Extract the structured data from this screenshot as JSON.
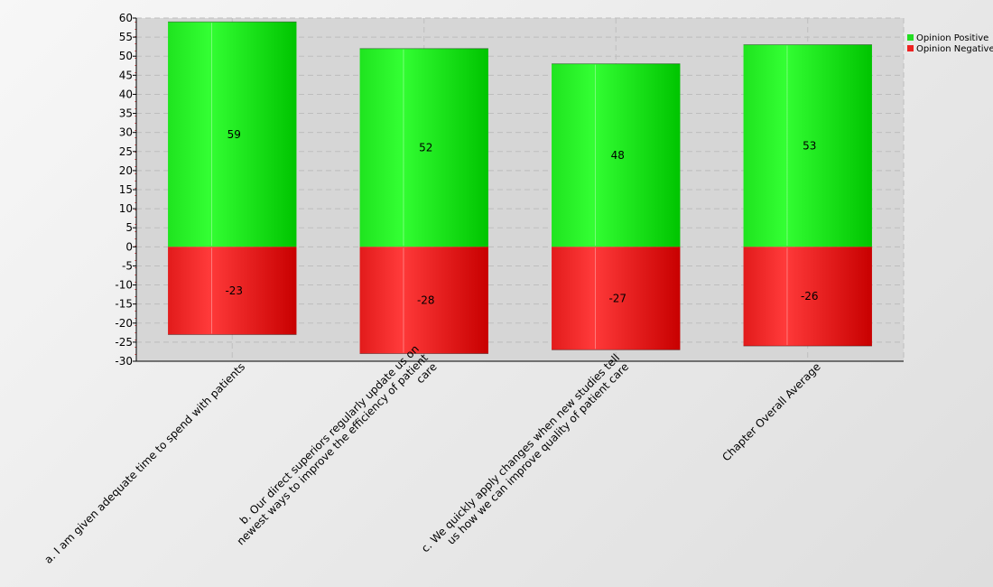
{
  "chart_data": {
    "type": "bar",
    "stacked": true,
    "categories": [
      [
        "a. I am given adequate time to spend with patients"
      ],
      [
        "b. Our direct superiors regularly update us on",
        "newest ways to improve the efficiency of patient",
        "care"
      ],
      [
        "c. We quickly apply changes when new studies tell",
        "us how we can improve quality of patient care"
      ],
      [
        "Chapter Overall Average"
      ]
    ],
    "series": [
      {
        "name": "Opinion Positive",
        "values": [
          59,
          52,
          48,
          53
        ],
        "color": "#22dd22"
      },
      {
        "name": "Opinion Negative",
        "values": [
          -23,
          -28,
          -27,
          -26
        ],
        "color": "#ee2222"
      }
    ],
    "ylim": [
      -30,
      60
    ],
    "ytick_step": 5,
    "grid": true,
    "legend_position": "top-right"
  }
}
